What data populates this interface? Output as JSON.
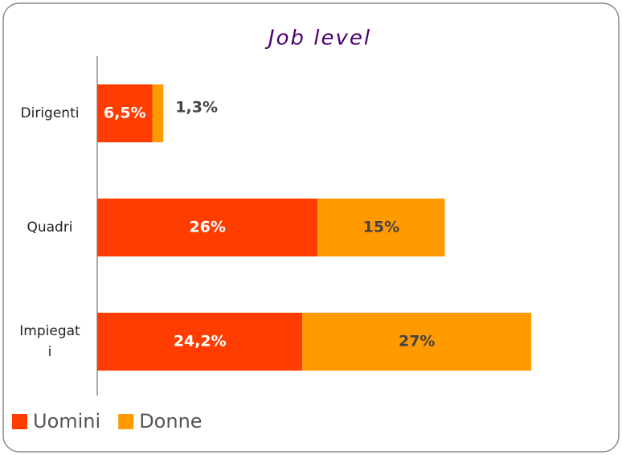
{
  "chart_data": {
    "type": "bar",
    "orientation": "horizontal",
    "stacked": true,
    "title": "Job level",
    "categories": [
      "Dirigenti",
      "Quadri",
      "Impiegati"
    ],
    "series": [
      {
        "name": "Uomini",
        "color": "#ff3d00",
        "values": [
          6.5,
          26,
          24.2
        ],
        "value_labels": [
          "6,5%",
          "26%",
          "24,2%"
        ]
      },
      {
        "name": "Donne",
        "color": "#ff9a00",
        "values": [
          1.3,
          15,
          27
        ],
        "value_labels": [
          "1,3%",
          "15%",
          "27%"
        ]
      }
    ],
    "xlim": [
      0,
      60
    ],
    "legend": "bottom-left"
  }
}
